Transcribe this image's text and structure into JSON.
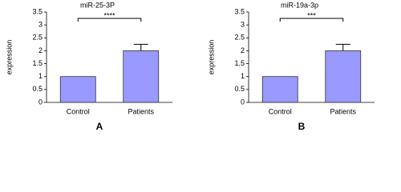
{
  "chart_data": [
    {
      "type": "bar",
      "title": "miR-25-3P",
      "y_label": "expression",
      "categories": [
        "Control",
        "Patients"
      ],
      "values": [
        1,
        2
      ],
      "errors": [
        null,
        0.25
      ],
      "color": "#9999ff",
      "ylim": [
        0,
        3.5
      ],
      "yticks": [
        0,
        0.5,
        1,
        1.5,
        2,
        2.5,
        3,
        3.5
      ],
      "annotation": "****",
      "panel": "A"
    },
    {
      "type": "bar",
      "title": "miR-19a-3p",
      "y_label": "expression",
      "categories": [
        "Control",
        "Patients"
      ],
      "values": [
        1,
        2
      ],
      "errors": [
        null,
        0.25
      ],
      "color": "#9999ff",
      "ylim": [
        0,
        3.5
      ],
      "yticks": [
        0,
        0.5,
        1,
        1.5,
        2,
        2.5,
        3,
        3.5
      ],
      "annotation": "***",
      "panel": "B"
    }
  ]
}
